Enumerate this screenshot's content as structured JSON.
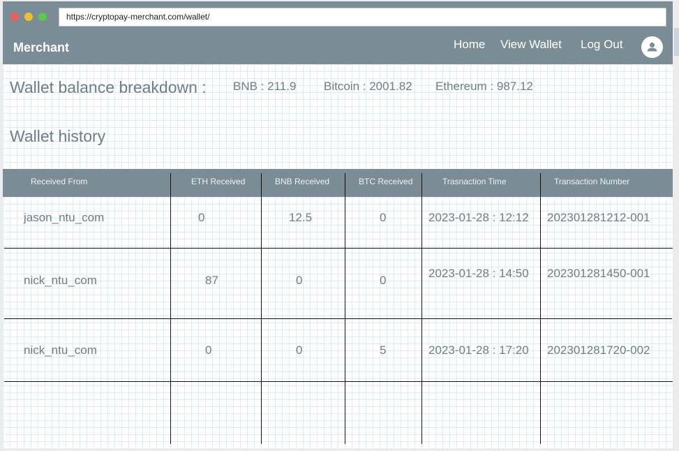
{
  "browser": {
    "url": "https://cryptopay-merchant.com/wallet/"
  },
  "navbar": {
    "brand": "Merchant",
    "links": [
      "Home",
      "View Wallet",
      "Log Out"
    ]
  },
  "balance": {
    "title": "Wallet balance breakdown :",
    "items": [
      "BNB : 211.9",
      "Bitcoin : 2001.82",
      "Ethereum : 987.12"
    ]
  },
  "history": {
    "title": "Wallet history",
    "columns": [
      "Received From",
      "ETH Received",
      "BNB Received",
      "BTC Received",
      "Trasnaction Time",
      "Transaction Number"
    ],
    "rows": [
      [
        "jason_ntu_com",
        "0",
        "12.5",
        "0",
        "2023-01-28 : 12:12",
        "202301281212-001"
      ],
      [
        "nick_ntu_com",
        "87",
        "0",
        "0",
        "2023-01-28 : 14:50",
        "202301281450-001"
      ],
      [
        "nick_ntu_com",
        "0",
        "0",
        "5",
        "2023-01-28 : 17:20",
        "202301281720-002"
      ]
    ]
  },
  "colors": {
    "header": "#7a8c95",
    "text": "#6d7e88",
    "close": "#ee5c57",
    "minimize": "#f4be32",
    "maximize": "#5cc74d"
  }
}
